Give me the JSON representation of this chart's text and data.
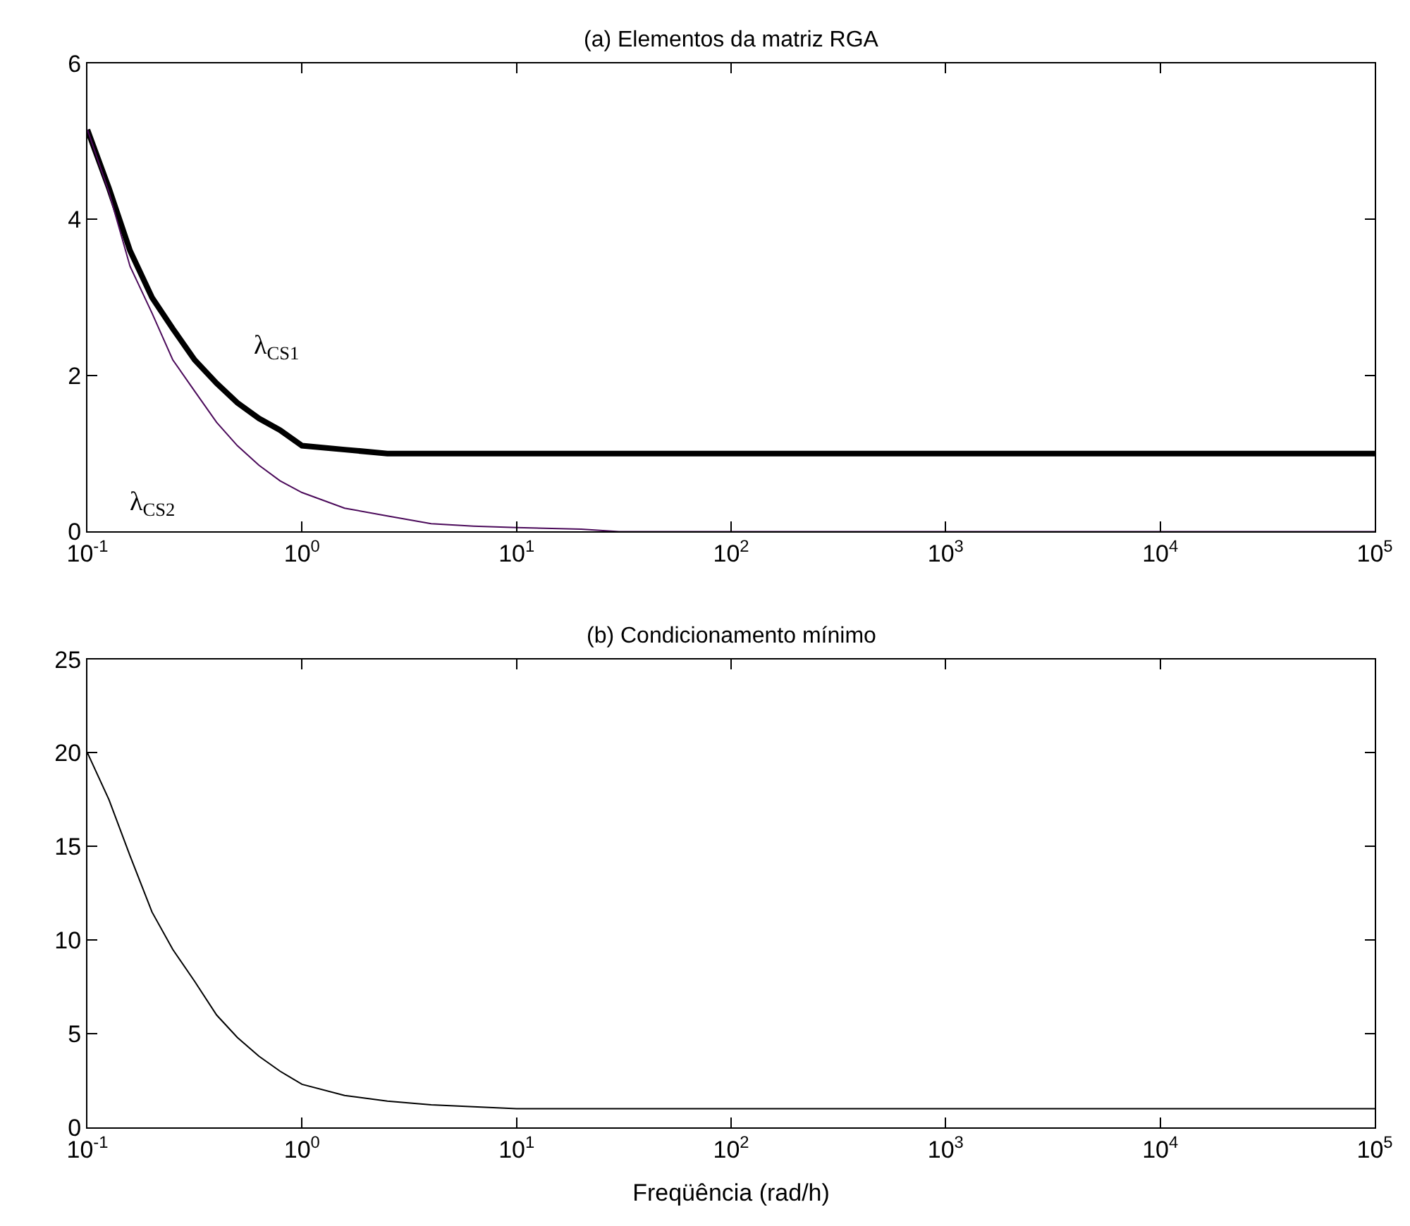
{
  "chart_data": [
    {
      "type": "line",
      "title": "(a) Elementos da matriz RGA",
      "log": "x",
      "grid": false,
      "legend": false,
      "marker": "none",
      "line_style": "solid",
      "xlim": [
        0.1,
        100000
      ],
      "xticks": [
        {
          "value": 0.1,
          "label": "10$^{-1}$"
        },
        {
          "value": 1,
          "label": "10$^{0}$"
        },
        {
          "value": 10,
          "label": "10$^{1}$"
        },
        {
          "value": 100,
          "label": "10$^{2}$"
        },
        {
          "value": 1000,
          "label": "10$^{3}$"
        },
        {
          "value": 10000,
          "label": "10$^{4}$"
        },
        {
          "value": 100000,
          "label": "10$^{5}$"
        }
      ],
      "ylim": [
        0,
        6
      ],
      "yticks": [
        0,
        2,
        4,
        6
      ],
      "series": [
        {
          "name": "λ$_{CS1}$",
          "color": "#000000",
          "x": [
            0.1,
            0.126,
            0.158,
            0.2,
            0.25,
            0.316,
            0.4,
            0.5,
            0.63,
            0.79,
            1,
            1.58,
            2.5,
            100000
          ],
          "values": [
            5.15,
            4.4,
            3.6,
            3.0,
            2.6,
            2.2,
            1.9,
            1.65,
            1.45,
            1.3,
            1.1,
            1.05,
            1.0,
            1.0
          ]
        },
        {
          "name": "λ$_{CS2}$",
          "color": "#4b0a5a",
          "x": [
            0.1,
            0.126,
            0.158,
            0.2,
            0.25,
            0.316,
            0.4,
            0.5,
            0.63,
            0.79,
            1,
            1.58,
            2.5,
            4,
            6.3,
            10,
            20,
            30,
            100000
          ],
          "values": [
            5.15,
            4.35,
            3.4,
            2.8,
            2.2,
            1.8,
            1.4,
            1.1,
            0.85,
            0.65,
            0.5,
            0.3,
            0.2,
            0.1,
            0.07,
            0.05,
            0.03,
            0,
            0
          ]
        }
      ]
    },
    {
      "type": "line",
      "title": "(b) Condicionamento mínimo",
      "xlabel": "Freqüência (rad/h)",
      "log": "x",
      "grid": false,
      "legend": false,
      "marker": "none",
      "line_style": "solid",
      "xlim": [
        0.1,
        100000
      ],
      "xticks": [
        {
          "value": 0.1,
          "label": "10$^{-1}$"
        },
        {
          "value": 1,
          "label": "10$^{0}$"
        },
        {
          "value": 10,
          "label": "10$^{1}$"
        },
        {
          "value": 100,
          "label": "10$^{2}$"
        },
        {
          "value": 1000,
          "label": "10$^{3}$"
        },
        {
          "value": 10000,
          "label": "10$^{4}$"
        },
        {
          "value": 100000,
          "label": "10$^{5}$"
        }
      ],
      "ylim": [
        0,
        25
      ],
      "yticks": [
        0,
        5,
        10,
        15,
        20,
        25
      ],
      "series": [
        {
          "color": "#000000",
          "x": [
            0.1,
            0.126,
            0.158,
            0.2,
            0.25,
            0.316,
            0.4,
            0.5,
            0.63,
            0.79,
            1,
            1.58,
            2.5,
            4,
            6.3,
            10,
            100000
          ],
          "values": [
            20,
            17.5,
            14.5,
            11.5,
            9.5,
            7.8,
            6,
            4.8,
            3.8,
            3,
            2.3,
            1.7,
            1.4,
            1.2,
            1.1,
            1.0,
            1.0
          ]
        }
      ]
    }
  ]
}
